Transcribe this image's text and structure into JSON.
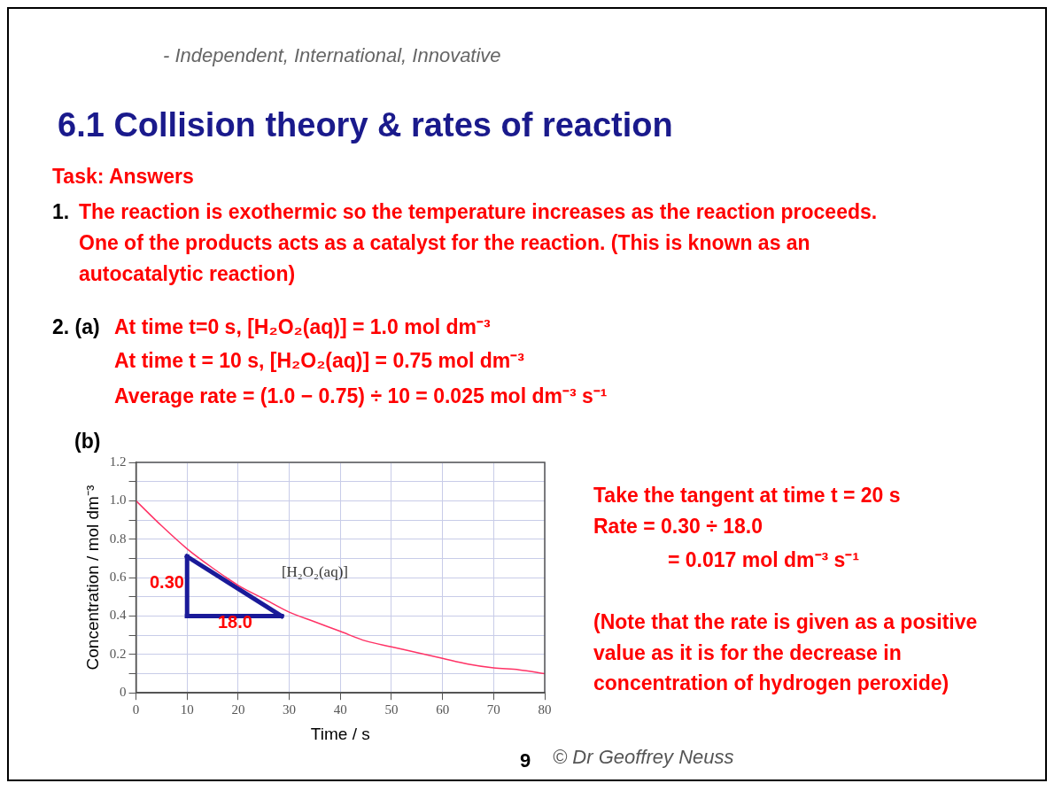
{
  "chart_data": {
    "type": "line",
    "title": "6.1 Collision theory & rates of reaction",
    "xlabel": "Time / s",
    "ylabel": "Concentration / mol dm⁻³",
    "xlim": [
      0,
      80
    ],
    "xticks": [
      0,
      10,
      20,
      30,
      40,
      50,
      60,
      70,
      80
    ],
    "ylim": [
      0,
      1.2
    ],
    "yticks": [
      0,
      {
        "value": 0.1,
        "label": null
      },
      0.2,
      {
        "value": 0.3,
        "label": null
      },
      0.4,
      {
        "value": 0.5,
        "label": null
      },
      0.6,
      {
        "value": 0.7,
        "label": null
      },
      0.8,
      {
        "value": 0.9,
        "label": null
      },
      {
        "value": 1,
        "label": "1.0"
      },
      {
        "value": 1.1,
        "label": null
      },
      1.2
    ],
    "grid": true,
    "series": [
      {
        "name": "[H₂O₂(aq)]",
        "color": "#ff3366",
        "x": [
          0,
          5,
          10,
          15,
          20,
          25,
          30,
          35,
          40,
          45,
          50,
          55,
          60,
          65,
          70,
          75,
          80
        ],
        "values": [
          1.0,
          0.87,
          0.75,
          0.65,
          0.56,
          0.49,
          0.42,
          0.37,
          0.32,
          0.27,
          0.24,
          0.21,
          0.18,
          0.15,
          0.13,
          0.12,
          0.1
        ]
      },
      {
        "color": "#1a1a99",
        "x": [
          10,
          28.5
        ],
        "values": [
          0.71,
          0.4
        ]
      },
      {
        "color": "#1a1a99",
        "x": [
          10,
          10
        ],
        "values": [
          0.4,
          0.71
        ]
      },
      {
        "color": "#1a1a99",
        "x": [
          10,
          28.5
        ],
        "values": [
          0.4,
          0.4
        ]
      }
    ],
    "annotations": [
      "- Independent, International, Innovative",
      "Task: Answers",
      "1.",
      "The reaction is exothermic so the temperature increases as the reaction proceeds.",
      "One of the products acts as a catalyst for the reaction. (This is known as an",
      "autocatalytic reaction)",
      "2. (a)",
      "At time t=0 s, [H₂O₂(aq)] = 1.0 mol dm⁻³",
      "At time t = 10 s, [H₂O₂(aq)] = 0.75 mol dm⁻³",
      "Average rate = (1.0 − 0.75) ÷ 10 = 0.025 mol dm⁻³ s⁻¹",
      "(b)",
      "Take the tangent at time t = 20 s",
      "Rate = 0.30 ÷ 18.0",
      "= 0.017 mol dm⁻³ s⁻¹",
      "(Note that the rate is given as a positive value as it is for the decrease in concentration of hydrogen peroxide)",
      "9",
      "© Dr Geoffrey Neuss",
      "0.30",
      "18.0"
    ]
  }
}
